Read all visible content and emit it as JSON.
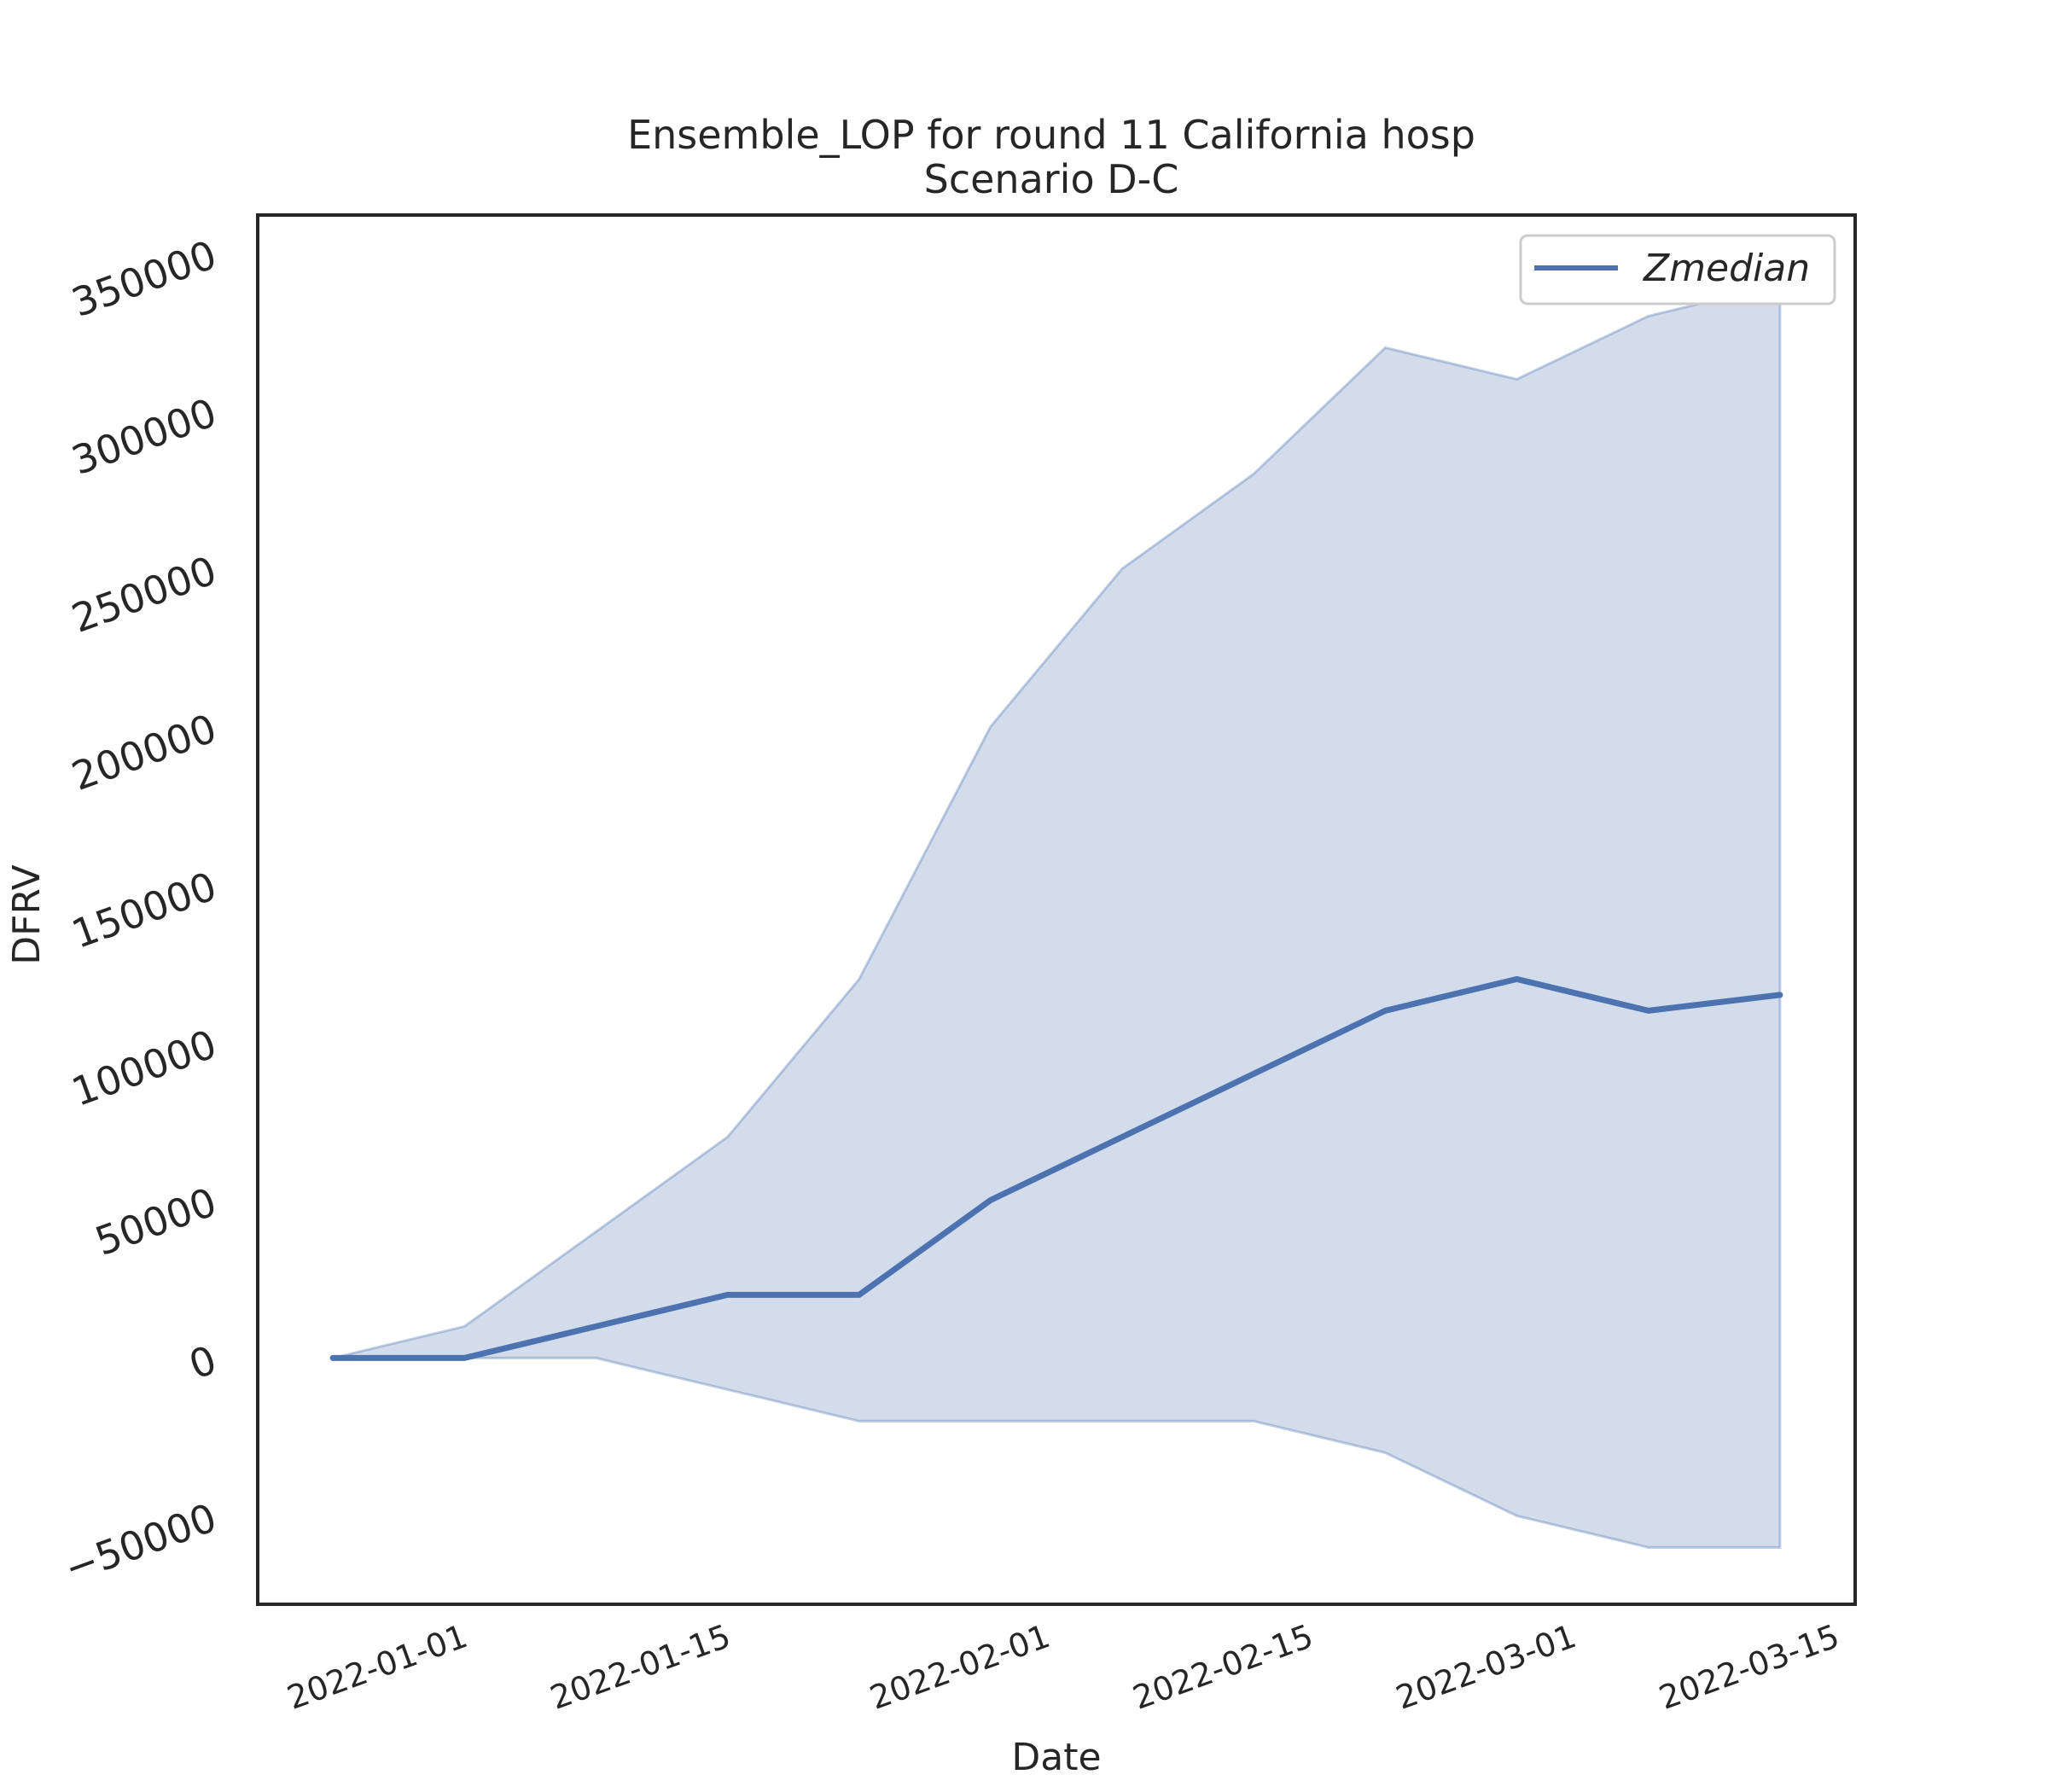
{
  "chart_data": {
    "type": "area",
    "title": "Ensemble_LOP for round 11 California hosp",
    "subtitle": "Scenario D-C",
    "xlabel": "Date",
    "ylabel": "DFRV",
    "x_ticks": [
      "2022-01-01",
      "2022-01-15",
      "2022-02-01",
      "2022-02-15",
      "2022-03-01",
      "2022-03-15"
    ],
    "y_ticks": [
      -50000,
      0,
      50000,
      100000,
      150000,
      200000,
      250000,
      300000,
      350000
    ],
    "ylim": [
      -78000,
      362000
    ],
    "xlim": [
      "2021-12-21",
      "2022-03-16"
    ],
    "grid": false,
    "legend_position": "top-right",
    "x": [
      "2021-12-25",
      "2022-01-01",
      "2022-01-08",
      "2022-01-15",
      "2022-01-22",
      "2022-01-29",
      "2022-02-05",
      "2022-02-12",
      "2022-02-19",
      "2022-02-26",
      "2022-03-05",
      "2022-03-12"
    ],
    "series": [
      {
        "name": "Zmedian",
        "color": "#4c72b0",
        "values": [
          0,
          0,
          10000,
          20000,
          20000,
          50000,
          70000,
          90000,
          110000,
          120000,
          110000,
          115000
        ]
      }
    ],
    "band": {
      "color": "#4c72b0",
      "opacity": 0.25,
      "upper": [
        0,
        10000,
        40000,
        70000,
        120000,
        200000,
        250000,
        280000,
        320000,
        310000,
        330000,
        340000
      ],
      "lower": [
        0,
        0,
        0,
        -10000,
        -20000,
        -20000,
        -20000,
        -20000,
        -30000,
        -50000,
        -60000,
        -60000
      ]
    }
  }
}
